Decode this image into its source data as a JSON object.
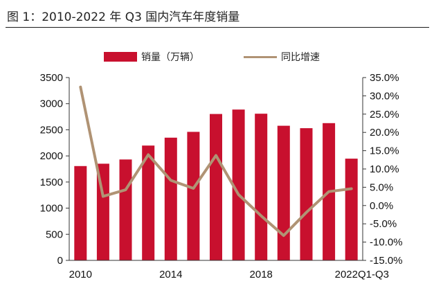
{
  "figure_title": "图 1：2010-2022 年 Q3 国内汽车年度销量",
  "chart_data": {
    "type": "bar",
    "title": "图 1：2010-2022 年 Q3 国内汽车年度销量",
    "categories": [
      "2010",
      "2011",
      "2012",
      "2013",
      "2014",
      "2015",
      "2016",
      "2017",
      "2018",
      "2019",
      "2020",
      "2021",
      "2022Q1-Q3"
    ],
    "x_tick_labels": [
      "2010",
      "2014",
      "2018",
      "2022Q1-Q3"
    ],
    "x_tick_categories": [
      "2010",
      "2014",
      "2018",
      "2022Q1-Q3"
    ],
    "series": [
      {
        "name": "销量（万辆）",
        "type": "bar",
        "axis": "left",
        "color": "#c8102e",
        "values": [
          1806,
          1851,
          1931,
          2198,
          2349,
          2460,
          2803,
          2888,
          2808,
          2577,
          2531,
          2628,
          1948
        ]
      },
      {
        "name": "同比增速",
        "type": "line",
        "axis": "right",
        "color": "#b09374",
        "values": [
          32.4,
          2.5,
          4.3,
          13.9,
          6.9,
          4.7,
          13.7,
          3.0,
          -2.8,
          -8.2,
          -1.9,
          3.8,
          4.6
        ]
      }
    ],
    "y_left": {
      "min": 0,
      "max": 3500,
      "ticks": [
        0,
        500,
        1000,
        1500,
        2000,
        2500,
        3000,
        3500
      ]
    },
    "y_right": {
      "min": -15,
      "max": 35,
      "ticks": [
        -15,
        -10,
        -5,
        0,
        5,
        10,
        15,
        20,
        25,
        30,
        35
      ],
      "tick_labels": [
        "-15.0%",
        "-10.0%",
        "-5.0%",
        "0.0%",
        "5.0%",
        "10.0%",
        "15.0%",
        "20.0%",
        "25.0%",
        "30.0%",
        "35.0%"
      ]
    },
    "grid": false,
    "legend_position": "top-center"
  }
}
